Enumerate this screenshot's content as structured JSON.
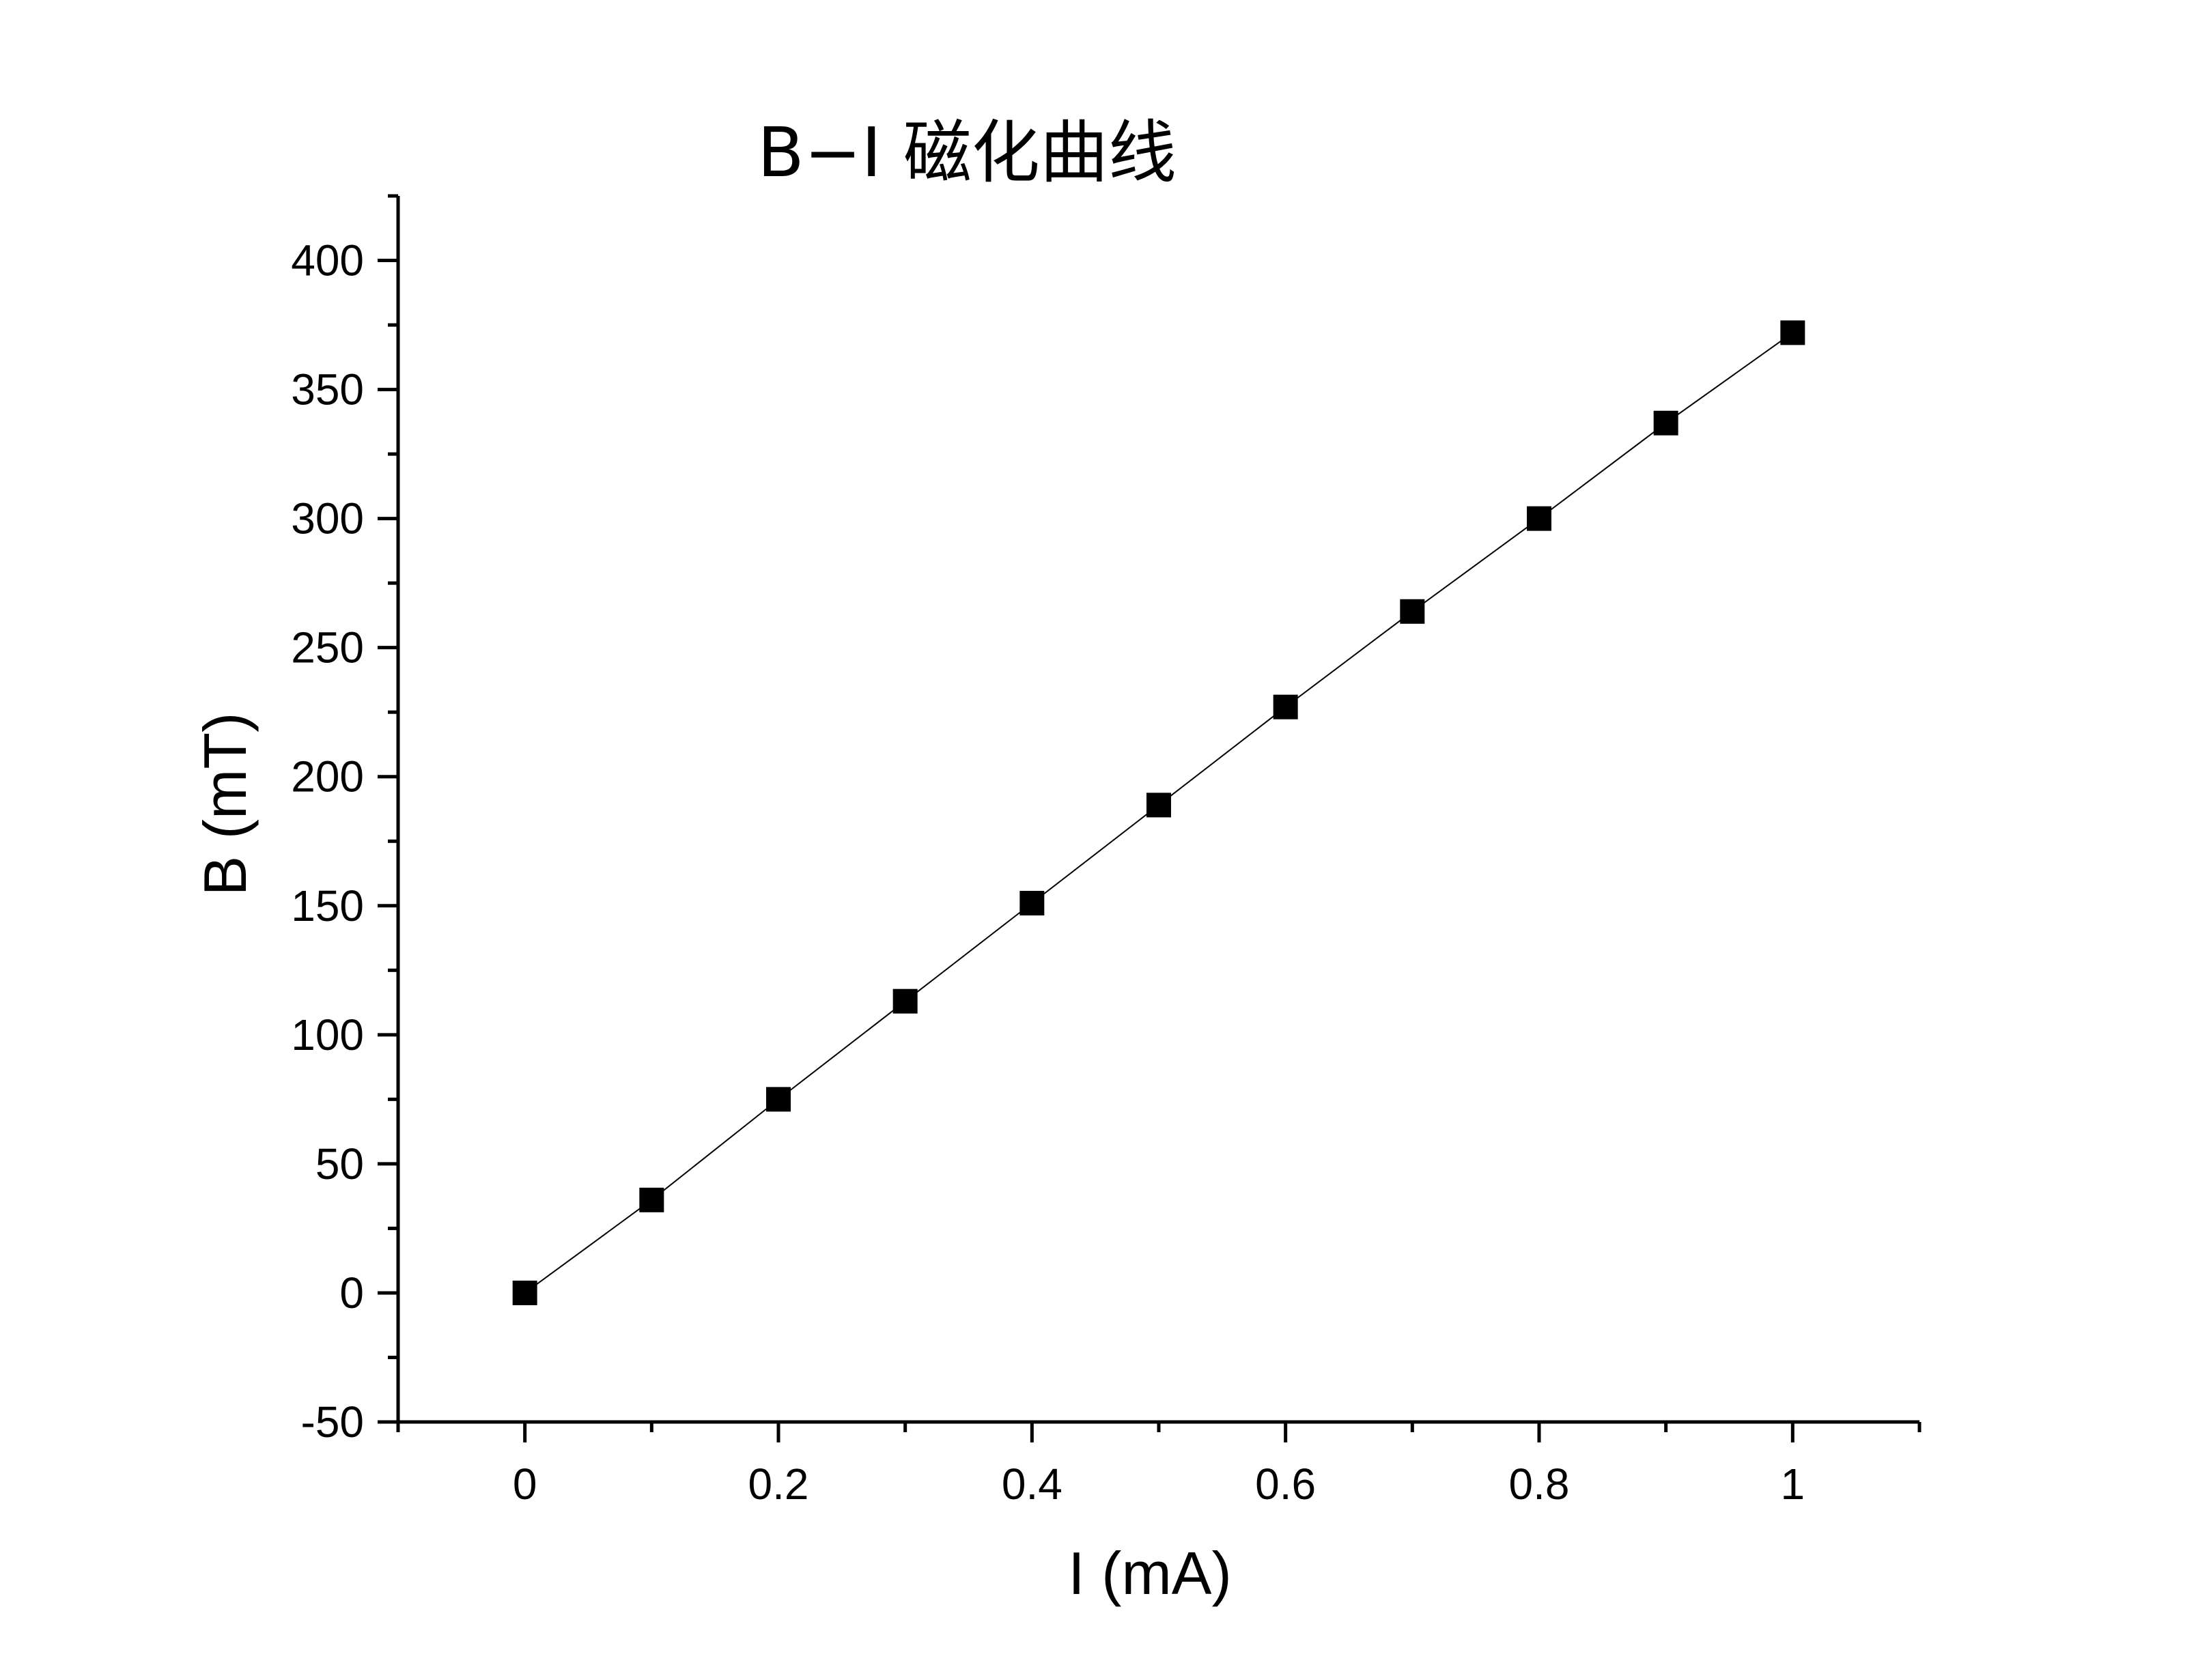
{
  "chart_data": {
    "type": "line",
    "title": "B−I 磁化曲线",
    "xlabel": "I (mA)",
    "ylabel": "B (mT)",
    "xlim": [
      -0.1,
      1.1
    ],
    "ylim": [
      -50,
      425
    ],
    "x_ticks": [
      0,
      0.2,
      0.4,
      0.6,
      0.8,
      1
    ],
    "x_tick_labels": [
      "0",
      "0.2",
      "0.4",
      "0.6",
      "0.8",
      "1"
    ],
    "x_minor_ticks": [
      -0.1,
      0.1,
      0.3,
      0.5,
      0.7,
      0.9,
      1.1
    ],
    "y_ticks": [
      -50,
      0,
      50,
      100,
      150,
      200,
      250,
      300,
      350,
      400
    ],
    "y_tick_labels": [
      "-50",
      "0",
      "50",
      "100",
      "150",
      "200",
      "250",
      "300",
      "350",
      "400"
    ],
    "y_minor_ticks": [
      -25,
      25,
      75,
      125,
      175,
      225,
      275,
      325,
      375,
      425
    ],
    "grid": false,
    "marker": "square",
    "series": [
      {
        "name": "B",
        "x": [
          0,
          0.1,
          0.2,
          0.3,
          0.4,
          0.5,
          0.6,
          0.7,
          0.8,
          0.9,
          1.0
        ],
        "values": [
          0,
          36,
          75,
          113,
          151,
          189,
          227,
          264,
          300,
          337,
          372
        ]
      }
    ]
  }
}
